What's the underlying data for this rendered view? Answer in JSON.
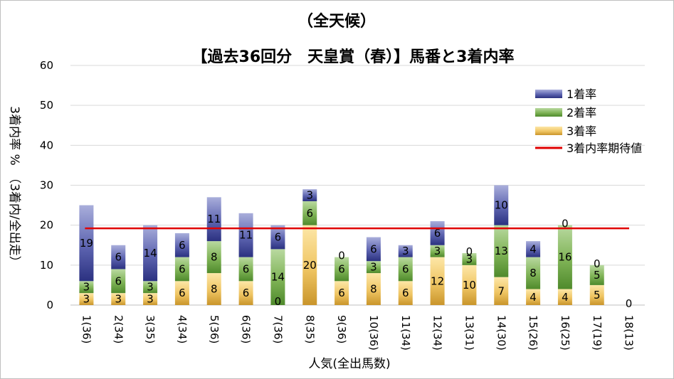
{
  "chart_data": {
    "type": "bar",
    "stacked": true,
    "title": "（全天候）",
    "subtitle": "【過去36回分　天皇賞（春）】馬番と3着内率",
    "xlabel": "人気(全出馬数)",
    "ylabel": "3着内率 %　（3着内/全出走）",
    "ylim": [
      0,
      60
    ],
    "yticks": [
      "0",
      "10",
      "20",
      "30",
      "40",
      "50",
      "60"
    ],
    "grid": true,
    "legend_position": "top-right",
    "categories": [
      "1(36)",
      "2(34)",
      "3(35)",
      "4(34)",
      "5(36)",
      "6(36)",
      "7(36)",
      "8(35)",
      "9(36)",
      "10(36)",
      "11(34)",
      "12(34)",
      "13(31)",
      "14(30)",
      "15(26)",
      "16(25)",
      "17(19)",
      "18(13)"
    ],
    "series": [
      {
        "name": "3着率",
        "color": "#d4a63c",
        "values": [
          3,
          3,
          3,
          6,
          8,
          6,
          0,
          20,
          6,
          8,
          6,
          12,
          10,
          7,
          4,
          4,
          5,
          0
        ]
      },
      {
        "name": "2着率",
        "color": "#5f9a3d",
        "values": [
          3,
          6,
          3,
          6,
          8,
          6,
          14,
          6,
          6,
          3,
          6,
          3,
          3,
          13,
          8,
          16,
          5,
          0
        ]
      },
      {
        "name": "1着率",
        "color": "#3a418f",
        "values": [
          19,
          6,
          14,
          6,
          11,
          11,
          6,
          3,
          0,
          6,
          3,
          6,
          0,
          10,
          4,
          0,
          0,
          0
        ]
      }
    ],
    "reference_line": {
      "name": "3着内率期待値",
      "value": 19.2,
      "color": "#e00000"
    },
    "legend": [
      "1着率",
      "2着率",
      "3着率",
      "3着内率期待値"
    ]
  }
}
